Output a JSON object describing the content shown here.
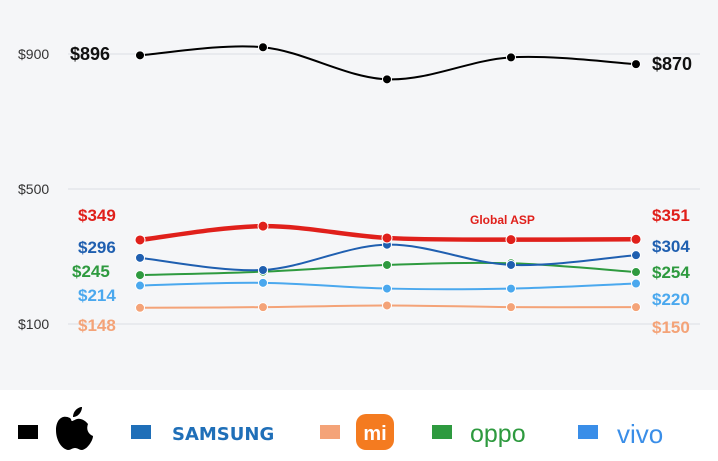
{
  "chart_data": {
    "type": "line",
    "x": [
      1,
      2,
      3,
      4,
      5
    ],
    "yticks": [
      "$900",
      "$500",
      "$100"
    ],
    "ytick_values": [
      900,
      500,
      100
    ],
    "ylim": [
      100,
      900
    ],
    "grid": true,
    "annotation": "Global ASP",
    "series": [
      {
        "key": "apple",
        "color": "#000000",
        "values": [
          896,
          920,
          825,
          890,
          870
        ],
        "start_label": "$896",
        "end_label": "$870"
      },
      {
        "key": "global",
        "color": "#e0201b",
        "values": [
          349,
          390,
          355,
          350,
          351
        ],
        "start_label": "$349",
        "end_label": "$351"
      },
      {
        "key": "samsung",
        "color": "#1f5fb0",
        "values": [
          296,
          260,
          335,
          275,
          304
        ],
        "start_label": "$296",
        "end_label": "$304"
      },
      {
        "key": "oppo",
        "color": "#2e9a3f",
        "values": [
          245,
          255,
          275,
          280,
          254
        ],
        "start_label": "$245",
        "end_label": "$254"
      },
      {
        "key": "vivo",
        "color": "#4aa8ee",
        "values": [
          214,
          222,
          205,
          205,
          220
        ],
        "start_label": "$214",
        "end_label": "$220"
      },
      {
        "key": "xiaomi",
        "color": "#f4a378",
        "values": [
          148,
          150,
          155,
          150,
          150
        ],
        "start_label": "$148",
        "end_label": "$150"
      }
    ]
  },
  "legend": [
    {
      "key": "apple",
      "color": "#000000",
      "icon": "apple-logo-icon"
    },
    {
      "key": "samsung",
      "color": "#1f6fb8",
      "text": "SAMSUNG"
    },
    {
      "key": "xiaomi",
      "color": "#f4a378",
      "icon": "mi-logo-icon",
      "text": "mi"
    },
    {
      "key": "oppo",
      "color": "#2e9a3f",
      "text": "oppo"
    },
    {
      "key": "vivo",
      "color": "#3a8ee8",
      "text": "vivo"
    }
  ]
}
